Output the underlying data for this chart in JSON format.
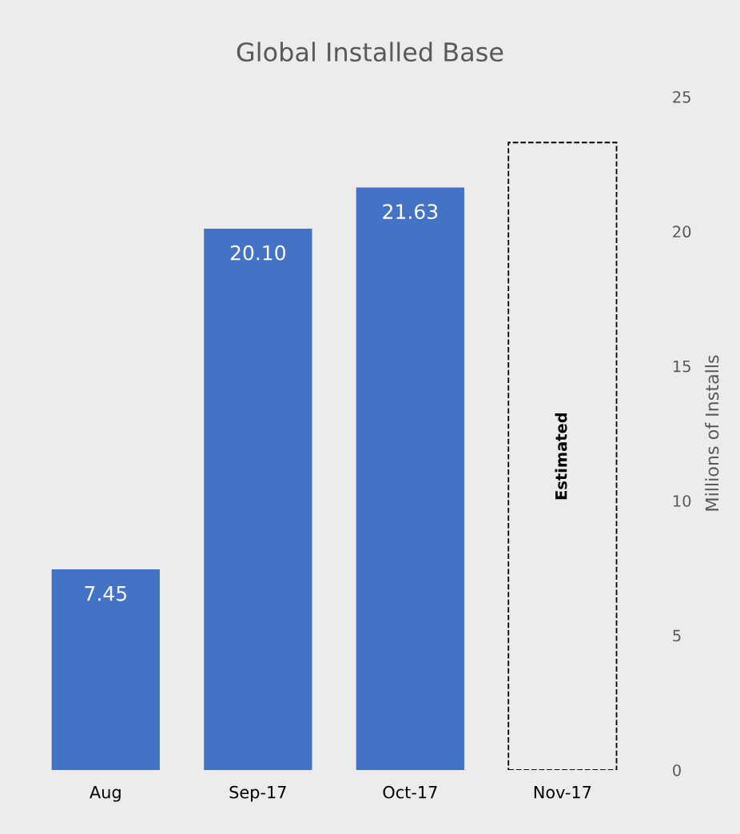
{
  "chart_data": {
    "type": "bar",
    "title": "Global Installed Base",
    "ylabel": "Millions of Installs",
    "categories": [
      "Aug",
      "Sep-17",
      "Oct-17",
      "Nov-17"
    ],
    "series": [
      {
        "color": "#4472c4",
        "values": [
          7.45,
          20.1,
          21.63,
          null
        ],
        "value_labels": [
          "7.45",
          "20.10",
          "21.63",
          null
        ]
      },
      {
        "color": "#000000",
        "line_style": "dashed",
        "values": [
          null,
          null,
          null,
          23.3
        ],
        "value_labels": [
          null,
          null,
          null,
          "Estimated"
        ]
      }
    ],
    "ylim": [
      0,
      25
    ],
    "yticks": [
      0,
      5,
      10,
      15,
      20,
      25
    ],
    "grid": false,
    "legend": false
  }
}
